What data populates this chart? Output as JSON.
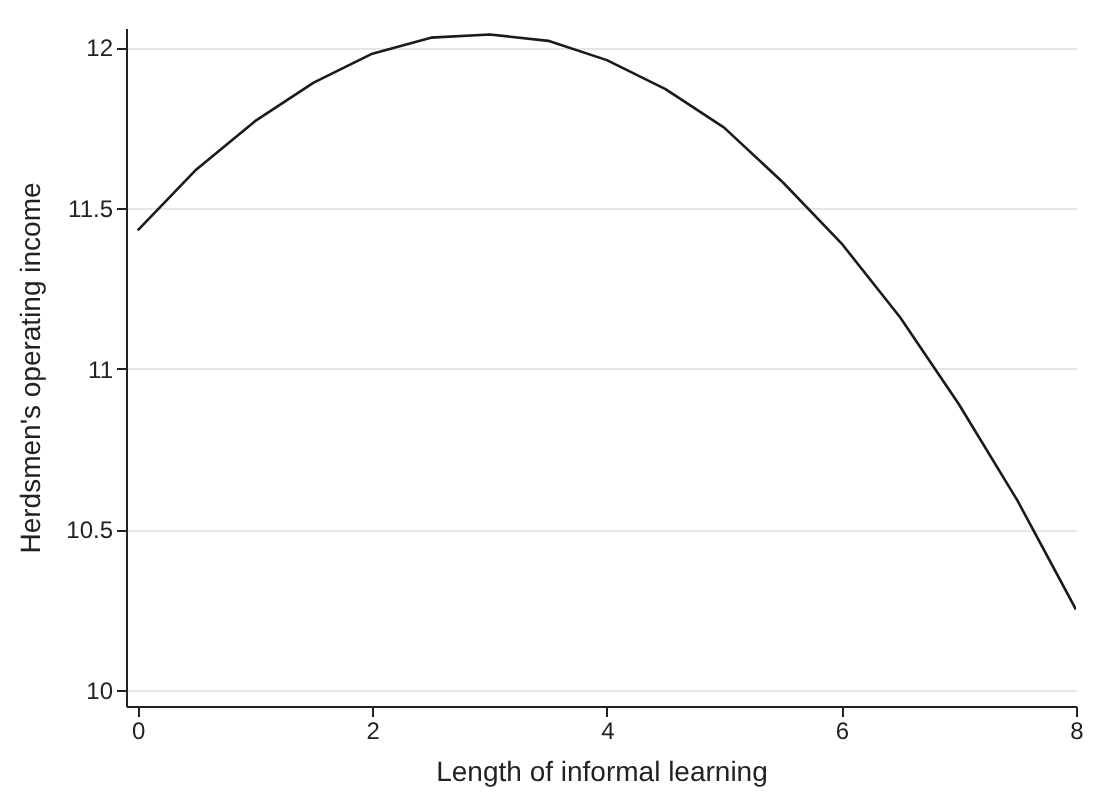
{
  "chart_data": {
    "type": "line",
    "xlabel": "Length of informal learning",
    "ylabel": "Herdsmen's operating income",
    "x": [
      0,
      0.5,
      1,
      1.5,
      2,
      2.5,
      3,
      3.5,
      4,
      4.5,
      5,
      5.5,
      6,
      6.5,
      7,
      7.5,
      8
    ],
    "series": [
      {
        "color": "#1a1a1a",
        "values": [
          11.43,
          11.62,
          11.77,
          11.89,
          11.98,
          12.03,
          12.04,
          12.02,
          11.96,
          11.87,
          11.75,
          11.58,
          11.39,
          11.16,
          10.89,
          10.59,
          10.25
        ]
      }
    ],
    "xlim": [
      -0.1,
      8
    ],
    "xticks": [
      0,
      2,
      4,
      6,
      8
    ],
    "ylim": [
      9.95,
      12.06
    ],
    "yticks": [
      10,
      10.5,
      11,
      11.5,
      12
    ],
    "grid": "y",
    "marker": "none",
    "line_style": "solid"
  }
}
